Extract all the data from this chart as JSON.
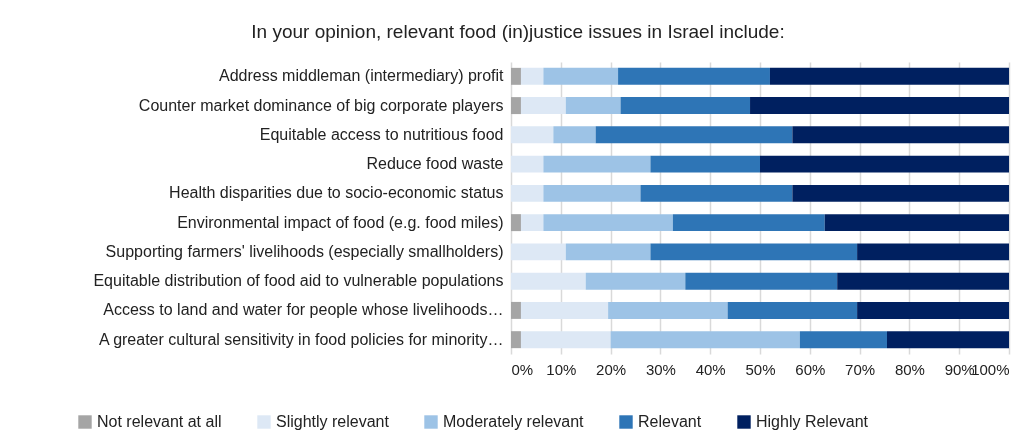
{
  "chart_data": {
    "type": "bar",
    "orientation": "horizontal",
    "stacked": true,
    "title": "In your opinion, relevant food (in)justice issues in Israel include:",
    "categories": [
      "Address middleman (intermediary) profit",
      "Counter market dominance of big corporate players",
      "Equitable access to nutritious food",
      "Reduce food waste",
      "Health disparities due to socio-economic status",
      "Environmental impact of food (e.g. food miles)",
      "Supporting farmers' livelihoods (especially smallholders)",
      "Equitable distribution of food aid to vulnerable populations",
      "Access to land and water for people whose livelihoods…",
      "A greater cultural sensitivity in food policies for minority…"
    ],
    "series": [
      {
        "name": "Not relevant at all",
        "color": "#a5a5a5",
        "values": [
          2,
          2,
          0,
          0,
          0,
          2,
          0,
          0,
          2,
          2
        ]
      },
      {
        "name": "Slightly relevant",
        "color": "#dde8f5",
        "values": [
          4.5,
          9,
          8.5,
          6.5,
          6.5,
          4.5,
          11,
          15,
          17.5,
          18
        ]
      },
      {
        "name": "Moderately relevant",
        "color": "#9dc3e6",
        "values": [
          15,
          11,
          8.5,
          21.5,
          19.5,
          26,
          17,
          20,
          24,
          38
        ]
      },
      {
        "name": "Relevant",
        "color": "#2e75b6",
        "values": [
          30.5,
          26,
          39.5,
          22,
          30.5,
          30.5,
          41.5,
          30.5,
          26,
          17.5
        ]
      },
      {
        "name": "Highly Relevant",
        "color": "#002060",
        "values": [
          48,
          52,
          43.5,
          50,
          43.5,
          37,
          30.5,
          34.5,
          30.5,
          24.5
        ]
      }
    ],
    "xlim": [
      0,
      100
    ],
    "xticks": [
      {
        "value": 0,
        "label": "0%"
      },
      {
        "value": 10,
        "label": "10%"
      },
      {
        "value": 20,
        "label": "20%"
      },
      {
        "value": 30,
        "label": "30%"
      },
      {
        "value": 40,
        "label": "40%"
      },
      {
        "value": 50,
        "label": "50%"
      },
      {
        "value": 60,
        "label": "60%"
      },
      {
        "value": 70,
        "label": "70%"
      },
      {
        "value": 80,
        "label": "80%"
      },
      {
        "value": 90,
        "label": "90%"
      },
      {
        "value": 100,
        "label": "100%"
      }
    ],
    "grid": true,
    "legend": "bottom"
  }
}
